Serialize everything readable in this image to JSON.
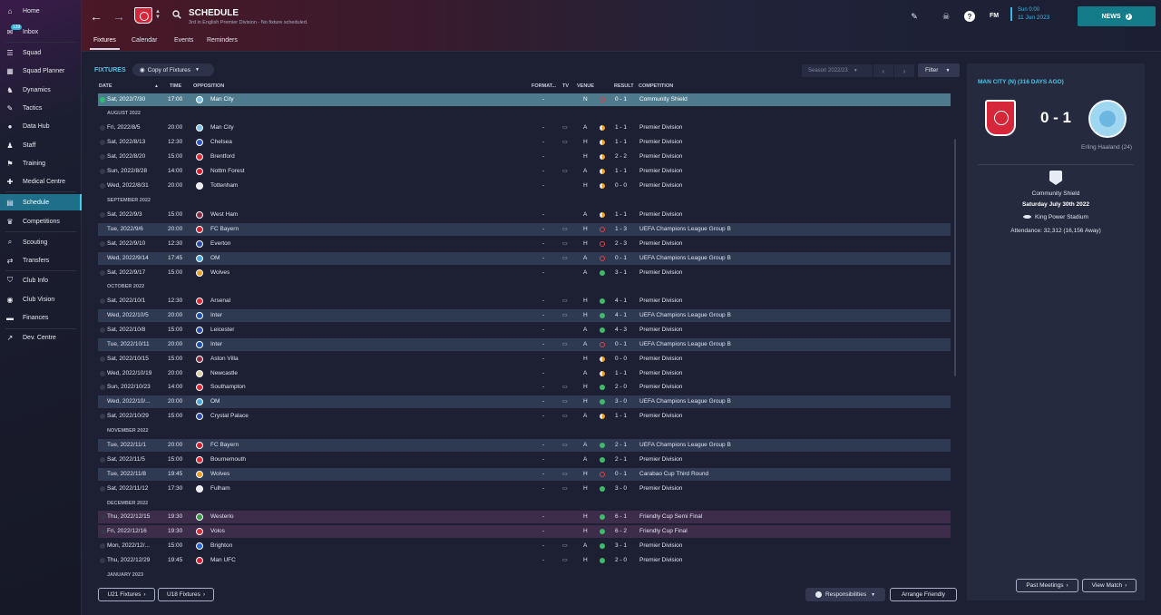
{
  "sidebar": {
    "items": [
      {
        "label": "Home",
        "icon": "home-icon",
        "g": "⌂"
      },
      {
        "label": "Inbox",
        "icon": "inbox-icon",
        "g": "✉",
        "badge": "139"
      },
      {
        "label": "Squad",
        "icon": "squad-icon",
        "g": "☰"
      },
      {
        "label": "Squad Planner",
        "icon": "squad-planner-icon",
        "g": "▦"
      },
      {
        "label": "Dynamics",
        "icon": "dynamics-icon",
        "g": "♞"
      },
      {
        "label": "Tactics",
        "icon": "tactics-icon",
        "g": "✎"
      },
      {
        "label": "Data Hub",
        "icon": "data-hub-icon",
        "g": "●"
      },
      {
        "label": "Staff",
        "icon": "staff-icon",
        "g": "♟"
      },
      {
        "label": "Training",
        "icon": "training-icon",
        "g": "⚑"
      },
      {
        "label": "Medical Centre",
        "icon": "medical-centre-icon",
        "g": "✚"
      },
      {
        "label": "Schedule",
        "icon": "schedule-icon",
        "g": "▤"
      },
      {
        "label": "Competitions",
        "icon": "competitions-icon",
        "g": "♛"
      },
      {
        "label": "Scouting",
        "icon": "scouting-icon",
        "g": "⌕"
      },
      {
        "label": "Transfers",
        "icon": "transfers-icon",
        "g": "⇄"
      },
      {
        "label": "Club Info",
        "icon": "club-info-icon",
        "g": "⛉"
      },
      {
        "label": "Club Vision",
        "icon": "club-vision-icon",
        "g": "◉"
      },
      {
        "label": "Finances",
        "icon": "finances-icon",
        "g": "▬"
      },
      {
        "label": "Dev. Centre",
        "icon": "dev-centre-icon",
        "g": "↗"
      }
    ]
  },
  "header": {
    "title": "SCHEDULE",
    "subtitle": "3rd in English Premier Division - No fixture scheduled.",
    "tabs": [
      "Fixtures",
      "Calendar",
      "Events",
      "Reminders"
    ],
    "fm": "FM",
    "date_line1": "Sun 0:00",
    "date_line2": "11 Jun 2023",
    "news_label": "NEWS",
    "help": "?"
  },
  "toolbar": {
    "fixtures_label": "FIXTURES",
    "copy_label": "Copy of Fixtures",
    "season_label": "Season 2022/23",
    "filter_label": "Filter"
  },
  "columns": {
    "date": "DATE",
    "time": "TIME",
    "opposition": "OPPOSITION",
    "format": "FORMAT...",
    "tv": "TV",
    "venue": "VENUE",
    "result": "RESULT",
    "competition": "COMPETITION"
  },
  "rows": [
    {
      "type": "match",
      "style": "sel",
      "date": "Sat, 2022/7/30",
      "time": "17:00",
      "opp": "Man City",
      "badge": "#7fc4e8",
      "format": "-",
      "tv": "",
      "venue": "N",
      "outcome": "loss",
      "result": "0 - 1",
      "comp": "Community Shield"
    },
    {
      "type": "month",
      "label": "AUGUST 2022"
    },
    {
      "type": "match",
      "style": "",
      "date": "Fri, 2022/8/5",
      "time": "20:00",
      "opp": "Man City",
      "badge": "#7fc4e8",
      "format": "-",
      "tv": "▭",
      "venue": "A",
      "outcome": "draw",
      "result": "1 - 1",
      "comp": "Premier Division"
    },
    {
      "type": "match",
      "style": "",
      "date": "Sat, 2022/8/13",
      "time": "12:30",
      "opp": "Chelsea",
      "badge": "#2a55c4",
      "format": "-",
      "tv": "▭",
      "venue": "H",
      "outcome": "draw",
      "result": "1 - 1",
      "comp": "Premier Division"
    },
    {
      "type": "match",
      "style": "",
      "date": "Sat, 2022/8/20",
      "time": "15:00",
      "opp": "Brentford",
      "badge": "#d92d36",
      "format": "-",
      "tv": "",
      "venue": "H",
      "outcome": "draw",
      "result": "2 - 2",
      "comp": "Premier Division"
    },
    {
      "type": "match",
      "style": "",
      "date": "Sun, 2022/8/28",
      "time": "14:00",
      "opp": "Nottm Forest",
      "badge": "#d0202e",
      "format": "-",
      "tv": "▭",
      "venue": "A",
      "outcome": "draw",
      "result": "1 - 1",
      "comp": "Premier Division"
    },
    {
      "type": "match",
      "style": "",
      "date": "Wed, 2022/8/31",
      "time": "20:00",
      "opp": "Tottenham",
      "badge": "#e8e8ee",
      "format": "-",
      "tv": "",
      "venue": "H",
      "outcome": "draw",
      "result": "0 - 0",
      "comp": "Premier Division"
    },
    {
      "type": "month",
      "label": "SEPTEMBER 2022"
    },
    {
      "type": "match",
      "style": "",
      "date": "Sat, 2022/9/3",
      "time": "15:00",
      "opp": "West Ham",
      "badge": "#8a2a44",
      "format": "-",
      "tv": "",
      "venue": "A",
      "outcome": "draw",
      "result": "1 - 1",
      "comp": "Premier Division"
    },
    {
      "type": "match",
      "style": "alt",
      "date": "Tue, 2022/9/6",
      "time": "20:00",
      "opp": "FC Bayern",
      "badge": "#d0202e",
      "format": "-",
      "tv": "▭",
      "venue": "H",
      "outcome": "loss",
      "result": "1 - 3",
      "comp": "UEFA Champions League Group B"
    },
    {
      "type": "match",
      "style": "",
      "date": "Sat, 2022/9/10",
      "time": "12:30",
      "opp": "Everton",
      "badge": "#2a4ca8",
      "format": "-",
      "tv": "▭",
      "venue": "H",
      "outcome": "loss",
      "result": "2 - 3",
      "comp": "Premier Division"
    },
    {
      "type": "match",
      "style": "alt",
      "date": "Wed, 2022/9/14",
      "time": "17:45",
      "opp": "OM",
      "badge": "#49a9dc",
      "format": "-",
      "tv": "▭",
      "venue": "A",
      "outcome": "loss",
      "result": "0 - 1",
      "comp": "UEFA Champions League Group B"
    },
    {
      "type": "match",
      "style": "",
      "date": "Sat, 2022/9/17",
      "time": "15:00",
      "opp": "Wolves",
      "badge": "#e8a02a",
      "format": "-",
      "tv": "",
      "venue": "A",
      "outcome": "win",
      "result": "3 - 1",
      "comp": "Premier Division"
    },
    {
      "type": "month",
      "label": "OCTOBER 2022"
    },
    {
      "type": "match",
      "style": "",
      "date": "Sat, 2022/10/1",
      "time": "12:30",
      "opp": "Arsenal",
      "badge": "#d92d36",
      "format": "-",
      "tv": "▭",
      "venue": "H",
      "outcome": "win",
      "result": "4 - 1",
      "comp": "Premier Division"
    },
    {
      "type": "match",
      "style": "alt",
      "date": "Wed, 2022/10/5",
      "time": "20:00",
      "opp": "Inter",
      "badge": "#1f4ea8",
      "format": "-",
      "tv": "▭",
      "venue": "H",
      "outcome": "win",
      "result": "4 - 1",
      "comp": "UEFA Champions League Group B"
    },
    {
      "type": "match",
      "style": "",
      "date": "Sat, 2022/10/8",
      "time": "15:00",
      "opp": "Leicester",
      "badge": "#2a4ca8",
      "format": "-",
      "tv": "",
      "venue": "A",
      "outcome": "win",
      "result": "4 - 3",
      "comp": "Premier Division"
    },
    {
      "type": "match",
      "style": "alt",
      "date": "Tue, 2022/10/11",
      "time": "20:00",
      "opp": "Inter",
      "badge": "#1f4ea8",
      "format": "-",
      "tv": "▭",
      "venue": "A",
      "outcome": "loss",
      "result": "0 - 1",
      "comp": "UEFA Champions League Group B"
    },
    {
      "type": "match",
      "style": "",
      "date": "Sat, 2022/10/15",
      "time": "15:00",
      "opp": "Aston Villa",
      "badge": "#8a2a44",
      "format": "-",
      "tv": "",
      "venue": "H",
      "outcome": "draw",
      "result": "0 - 0",
      "comp": "Premier Division"
    },
    {
      "type": "match",
      "style": "",
      "date": "Wed, 2022/10/19",
      "time": "20:00",
      "opp": "Newcastle",
      "badge": "#dcd2a8",
      "format": "-",
      "tv": "",
      "venue": "A",
      "outcome": "draw",
      "result": "1 - 1",
      "comp": "Premier Division"
    },
    {
      "type": "match",
      "style": "",
      "date": "Sun, 2022/10/23",
      "time": "14:00",
      "opp": "Southampton",
      "badge": "#d92d36",
      "format": "-",
      "tv": "▭",
      "venue": "H",
      "outcome": "win",
      "result": "2 - 0",
      "comp": "Premier Division"
    },
    {
      "type": "match",
      "style": "alt",
      "date": "Wed, 2022/10/...",
      "time": "20:00",
      "opp": "OM",
      "badge": "#49a9dc",
      "format": "-",
      "tv": "▭",
      "venue": "H",
      "outcome": "win",
      "result": "3 - 0",
      "comp": "UEFA Champions League Group B"
    },
    {
      "type": "match",
      "style": "",
      "date": "Sat, 2022/10/29",
      "time": "15:00",
      "opp": "Crystal Palace",
      "badge": "#2a4ca8",
      "format": "-",
      "tv": "▭",
      "venue": "A",
      "outcome": "draw",
      "result": "1 - 1",
      "comp": "Premier Division"
    },
    {
      "type": "month",
      "label": "NOVEMBER 2022"
    },
    {
      "type": "match",
      "style": "alt",
      "date": "Tue, 2022/11/1",
      "time": "20:00",
      "opp": "FC Bayern",
      "badge": "#d0202e",
      "format": "-",
      "tv": "▭",
      "venue": "A",
      "outcome": "win",
      "result": "2 - 1",
      "comp": "UEFA Champions League Group B"
    },
    {
      "type": "match",
      "style": "",
      "date": "Sat, 2022/11/5",
      "time": "15:00",
      "opp": "Bournemouth",
      "badge": "#d92d36",
      "format": "-",
      "tv": "",
      "venue": "A",
      "outcome": "win",
      "result": "2 - 1",
      "comp": "Premier Division"
    },
    {
      "type": "match",
      "style": "alt",
      "date": "Tue, 2022/11/8",
      "time": "19:45",
      "opp": "Wolves",
      "badge": "#e8a02a",
      "format": "-",
      "tv": "▭",
      "venue": "H",
      "outcome": "loss",
      "result": "0 - 1",
      "comp": "Carabao Cup Third Round"
    },
    {
      "type": "match",
      "style": "",
      "date": "Sat, 2022/11/12",
      "time": "17:30",
      "opp": "Fulham",
      "badge": "#e8e8ee",
      "format": "-",
      "tv": "▭",
      "venue": "H",
      "outcome": "win",
      "result": "3 - 0",
      "comp": "Premier Division"
    },
    {
      "type": "month",
      "label": "DECEMBER 2022"
    },
    {
      "type": "match",
      "style": "pink",
      "date": "Thu, 2022/12/15",
      "time": "19:30",
      "opp": "Westerlo",
      "badge": "#3a9a4a",
      "format": "-",
      "tv": "",
      "venue": "H",
      "outcome": "win",
      "result": "6 - 1",
      "comp": "Friendly Cup Semi Final"
    },
    {
      "type": "match",
      "style": "pink",
      "date": "Fri, 2022/12/16",
      "time": "19:30",
      "opp": "Volos",
      "badge": "#d92d36",
      "format": "-",
      "tv": "",
      "venue": "H",
      "outcome": "win",
      "result": "6 - 2",
      "comp": "Friendly Cup Final"
    },
    {
      "type": "match",
      "style": "",
      "date": "Mon, 2022/12/...",
      "time": "15:00",
      "opp": "Brighton",
      "badge": "#2a6ad8",
      "format": "-",
      "tv": "▭",
      "venue": "A",
      "outcome": "win",
      "result": "3 - 1",
      "comp": "Premier Division"
    },
    {
      "type": "match",
      "style": "",
      "date": "Thu, 2022/12/29",
      "time": "19:45",
      "opp": "Man UFC",
      "badge": "#d0202e",
      "format": "-",
      "tv": "▭",
      "venue": "H",
      "outcome": "win",
      "result": "2 - 0",
      "comp": "Premier Division"
    },
    {
      "type": "month",
      "label": "JANUARY 2023"
    }
  ],
  "footer": {
    "u21_label": "U21 Fixtures",
    "u18_label": "U18 Fixtures",
    "responsibilities_label": "Responsibilities",
    "arrange_label": "Arrange Friendly"
  },
  "last_match": {
    "title": "MAN CITY (N) (316 DAYS AGO)",
    "score": "0 - 1",
    "scorer": "Erling Haaland (24)",
    "competition": "Community Shield",
    "date": "Saturday July 30th 2022",
    "stadium": "King Power Stadium",
    "attendance": "Attendance: 32,312 (16,156 Away)",
    "past_label": "Past Meetings",
    "view_label": "View Match"
  }
}
